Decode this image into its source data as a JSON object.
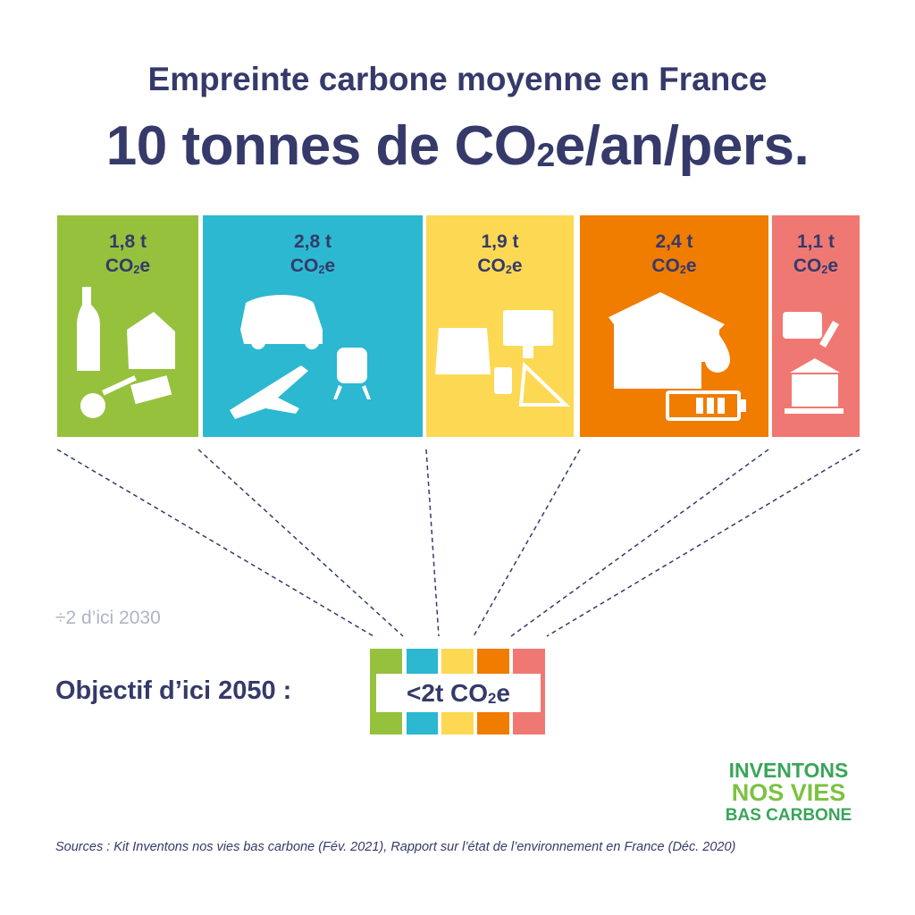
{
  "title": "Empreinte carbone moyenne en France",
  "subtitle_pre": "10 tonnes de CO",
  "subtitle_sub": "2",
  "subtitle_post": "e/an/pers.",
  "categories": [
    {
      "value": "1,8 t",
      "unit": "CO",
      "unit_sub": "2",
      "unit_post": "e",
      "color": "#95c13d",
      "icon": "food-icon"
    },
    {
      "value": "2,8 t",
      "unit": "CO",
      "unit_sub": "2",
      "unit_post": "e",
      "color": "#2cb8d0",
      "icon": "transport-icon"
    },
    {
      "value": "1,9 t",
      "unit": "CO",
      "unit_sub": "2",
      "unit_post": "e",
      "color": "#fdd853",
      "icon": "shopping-icon"
    },
    {
      "value": "2,4 t",
      "unit": "CO",
      "unit_sub": "2",
      "unit_post": "e",
      "color": "#f07c00",
      "icon": "housing-icon"
    },
    {
      "value": "1,1 t",
      "unit": "CO",
      "unit_sub": "2",
      "unit_post": "e",
      "color": "#f07873",
      "icon": "public-services-icon"
    }
  ],
  "note": "÷2 d’ici 2030",
  "objective_label": "Objectif d’ici 2050 :",
  "goal_pre": "<2t CO",
  "goal_sub": "2",
  "goal_post": "e",
  "logo": {
    "line1": "INVENTONS",
    "line2": "NOS VIES",
    "line3": "BAS CARBONE"
  },
  "sources": "Sources : Kit Inventons nos vies bas carbone (Fév. 2021), Rapport sur l’état de l’environnement en France (Déc. 2020)"
}
